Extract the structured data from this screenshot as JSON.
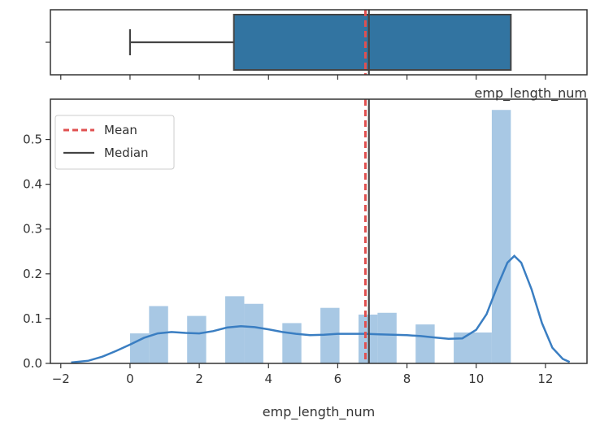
{
  "chart_data": [
    {
      "type": "box",
      "orientation": "horizontal",
      "xlabel": "emp_length_num",
      "xlim": [
        -2.3,
        13.2
      ],
      "whisker_low": 0,
      "q1": 3,
      "median": 6.9,
      "mean": 6.8,
      "q3": 11,
      "whisker_high": 11,
      "colors": {
        "box": "#3274a1",
        "mean_line": "#e05050",
        "median_line": "#444444"
      }
    },
    {
      "type": "histogram",
      "xlabel": "emp_length_num",
      "ylabel": "",
      "xlim": [
        -2.3,
        13.2
      ],
      "ylim": [
        0,
        0.59
      ],
      "xticks": [
        -2,
        0,
        2,
        4,
        6,
        8,
        10,
        12
      ],
      "yticks": [
        0.0,
        0.1,
        0.2,
        0.3,
        0.4,
        0.5
      ],
      "ytick_labels": [
        "0.0",
        "0.1",
        "0.2",
        "0.3",
        "0.4",
        "0.5"
      ],
      "bins": [
        {
          "x0": 0.0,
          "x1": 0.55,
          "height": 0.067
        },
        {
          "x0": 0.55,
          "x1": 1.1,
          "height": 0.128
        },
        {
          "x0": 1.65,
          "x1": 2.2,
          "height": 0.106
        },
        {
          "x0": 2.75,
          "x1": 3.3,
          "height": 0.15
        },
        {
          "x0": 3.3,
          "x1": 3.85,
          "height": 0.133
        },
        {
          "x0": 4.4,
          "x1": 4.95,
          "height": 0.09
        },
        {
          "x0": 5.5,
          "x1": 6.05,
          "height": 0.124
        },
        {
          "x0": 6.6,
          "x1": 7.15,
          "height": 0.109
        },
        {
          "x0": 7.15,
          "x1": 7.7,
          "height": 0.113
        },
        {
          "x0": 8.25,
          "x1": 8.8,
          "height": 0.087
        },
        {
          "x0": 9.35,
          "x1": 9.9,
          "height": 0.069
        },
        {
          "x0": 9.9,
          "x1": 10.45,
          "height": 0.069
        },
        {
          "x0": 10.45,
          "x1": 11.0,
          "height": 0.566
        }
      ],
      "kde": {
        "x": [
          -1.7,
          -1.2,
          -0.8,
          -0.4,
          0.0,
          0.4,
          0.8,
          1.2,
          1.6,
          2.0,
          2.4,
          2.8,
          3.2,
          3.6,
          4.0,
          4.4,
          4.8,
          5.2,
          5.6,
          6.0,
          6.4,
          6.8,
          7.2,
          7.6,
          8.0,
          8.4,
          8.8,
          9.2,
          9.6,
          10.0,
          10.3,
          10.6,
          10.9,
          11.1,
          11.3,
          11.6,
          11.9,
          12.2,
          12.5,
          12.7
        ],
        "y": [
          0.002,
          0.006,
          0.015,
          0.028,
          0.042,
          0.057,
          0.067,
          0.07,
          0.068,
          0.067,
          0.072,
          0.08,
          0.083,
          0.081,
          0.076,
          0.07,
          0.066,
          0.063,
          0.064,
          0.066,
          0.066,
          0.066,
          0.065,
          0.064,
          0.063,
          0.061,
          0.058,
          0.055,
          0.056,
          0.075,
          0.11,
          0.17,
          0.225,
          0.24,
          0.225,
          0.165,
          0.09,
          0.035,
          0.01,
          0.003
        ]
      },
      "mean": 6.8,
      "median": 6.9,
      "legend": {
        "placement": "top-left",
        "entries": [
          {
            "label": "Mean",
            "style": "dashed",
            "color": "#e05050"
          },
          {
            "label": "Median",
            "style": "solid",
            "color": "#444444"
          }
        ]
      },
      "colors": {
        "bars": "#a8c8e4",
        "kde": "#3a7ec2"
      }
    }
  ]
}
